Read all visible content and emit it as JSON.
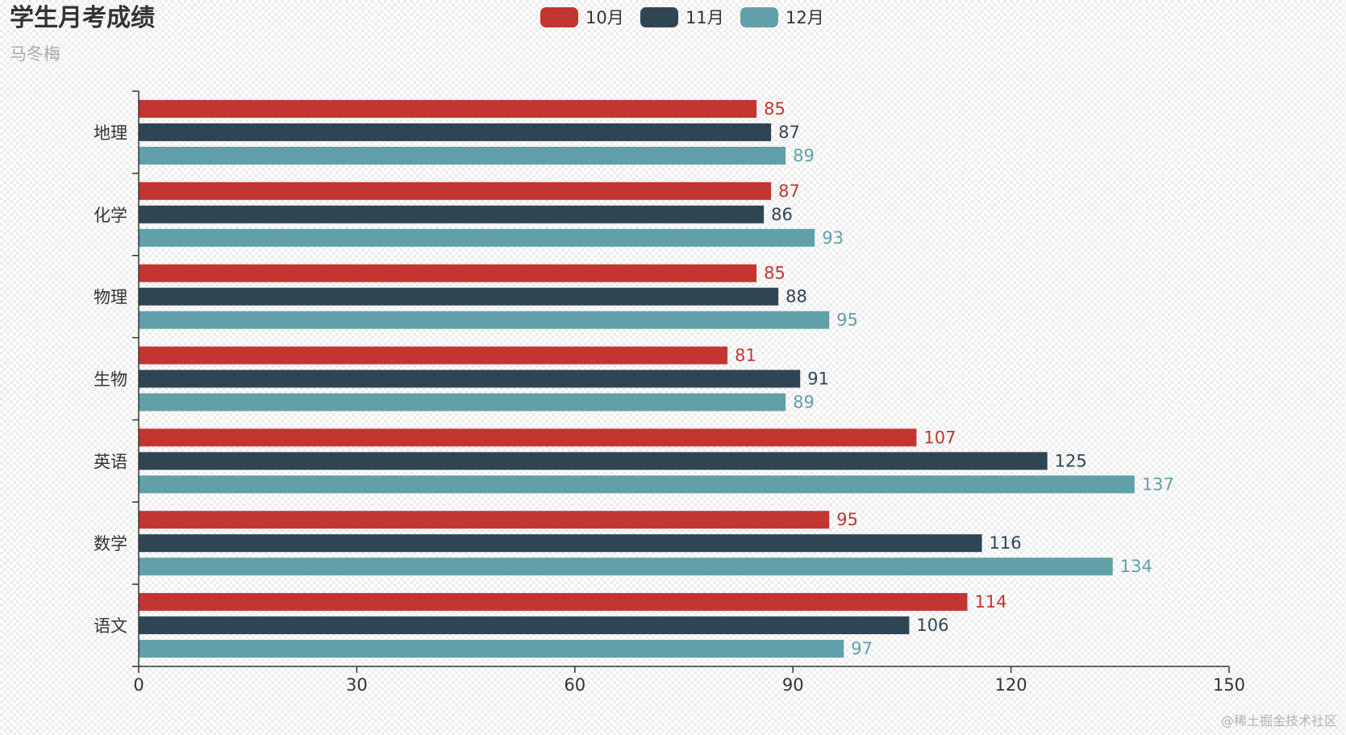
{
  "watermark": "@稀土掘金技术社区",
  "chart_data": {
    "type": "bar",
    "orientation": "horizontal",
    "title": "学生月考成绩",
    "subtitle": "马冬梅",
    "categories": [
      "地理",
      "化学",
      "物理",
      "生物",
      "英语",
      "数学",
      "语文"
    ],
    "series": [
      {
        "name": "10月",
        "color": "#c23531",
        "values": [
          85,
          87,
          85,
          81,
          107,
          95,
          114
        ]
      },
      {
        "name": "11月",
        "color": "#2f4554",
        "values": [
          87,
          86,
          88,
          91,
          125,
          116,
          106
        ]
      },
      {
        "name": "12月",
        "color": "#61a0a8",
        "values": [
          89,
          93,
          95,
          89,
          137,
          134,
          97
        ]
      }
    ],
    "xlim": [
      0,
      150
    ],
    "xticks": [
      0,
      30,
      60,
      90,
      120,
      150
    ],
    "legend_position": "top-center",
    "grid": false,
    "data_labels": true
  }
}
